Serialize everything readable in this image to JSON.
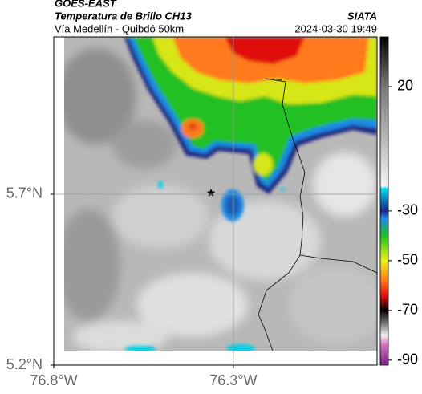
{
  "header": {
    "satellite": "GOES-EAST",
    "product": "Temperatura de Brillo CH13",
    "region": "Vía Medellín - Quibdó 50km",
    "agency": "SIATA",
    "timestamp": "2024-03-30 19:49"
  },
  "map": {
    "xlim": [
      -76.8,
      -75.9
    ],
    "ylim": [
      5.2,
      6.16
    ],
    "xticks": [
      {
        "value": -76.8,
        "label": "76.8°W"
      },
      {
        "value": -76.3,
        "label": "76.3°W"
      }
    ],
    "yticks": [
      {
        "value": 5.2,
        "label": "5.2°N"
      },
      {
        "value": 5.7,
        "label": "5.7°N"
      }
    ],
    "grid": true
  },
  "colorbar": {
    "lim": [
      -92,
      40
    ],
    "ticks": [
      20,
      -30,
      -50,
      -70,
      -90
    ],
    "stops": [
      {
        "value": 40,
        "color": "#000000"
      },
      {
        "value": 20,
        "color": "#777777"
      },
      {
        "value": -20,
        "color": "#f2f2f2"
      },
      {
        "value": -21,
        "color": "#00d8f0"
      },
      {
        "value": -30,
        "color": "#1a237e"
      },
      {
        "value": -33,
        "color": "#1e88e5"
      },
      {
        "value": -40,
        "color": "#22c022"
      },
      {
        "value": -50,
        "color": "#e8f01a"
      },
      {
        "value": -58,
        "color": "#ff7a1a"
      },
      {
        "value": -64,
        "color": "#e01010"
      },
      {
        "value": -70,
        "color": "#000000"
      },
      {
        "value": -76,
        "color": "#888888"
      },
      {
        "value": -80,
        "color": "#eeeeee"
      },
      {
        "value": -84,
        "color": "#d070c0"
      },
      {
        "value": -92,
        "color": "#702080"
      }
    ]
  }
}
